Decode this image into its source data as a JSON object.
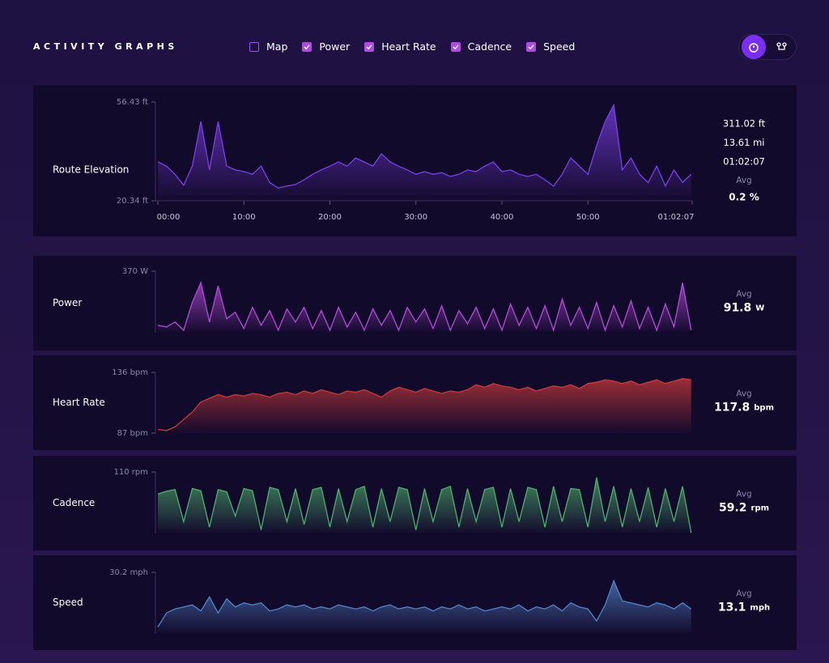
{
  "header": {
    "title": "ACTIVITY GRAPHS",
    "toggles": [
      {
        "label": "Map",
        "checked": false
      },
      {
        "label": "Power",
        "checked": true
      },
      {
        "label": "Heart Rate",
        "checked": true
      },
      {
        "label": "Cadence",
        "checked": true
      },
      {
        "label": "Speed",
        "checked": true
      }
    ]
  },
  "x": [
    0,
    1,
    2,
    3,
    4,
    5,
    6,
    7,
    8,
    9,
    10,
    11,
    12,
    13,
    14,
    15,
    16,
    17,
    18,
    19,
    20,
    21,
    22,
    23,
    24,
    25,
    26,
    27,
    28,
    29,
    30,
    31,
    32,
    33,
    34,
    35,
    36,
    37,
    38,
    39,
    40,
    41,
    42,
    43,
    44,
    45,
    46,
    47,
    48,
    49,
    50,
    51,
    52,
    53,
    54,
    55,
    56,
    57,
    58,
    59,
    60,
    61,
    62
  ],
  "xlim": [
    0,
    62.12
  ],
  "charts": [
    {
      "type": "area",
      "label": "Route Elevation",
      "color": "#7b3fe8",
      "ylim": [
        20.34,
        56.43
      ],
      "yticks": [
        {
          "value": 56.43,
          "label": "56.43 ft"
        },
        {
          "value": 20.34,
          "label": "20.34 ft"
        }
      ],
      "xticks": [
        {
          "value": 0,
          "label": "00:00"
        },
        {
          "value": 10,
          "label": "10:00"
        },
        {
          "value": 20,
          "label": "20:00"
        },
        {
          "value": 30,
          "label": "30:00"
        },
        {
          "value": 40,
          "label": "40:00"
        },
        {
          "value": 50,
          "label": "50:00"
        },
        {
          "value": 62.12,
          "label": "01:02:07"
        }
      ],
      "values": [
        34.5,
        33,
        30,
        26,
        33,
        49.3,
        31.6,
        49.3,
        33,
        31.6,
        31,
        30,
        33,
        27,
        25,
        25.7,
        26.3,
        28,
        30,
        31.6,
        33,
        34.5,
        33,
        36,
        34.5,
        33,
        37.5,
        34.5,
        33,
        31.6,
        30,
        31,
        30,
        30.6,
        29.2,
        30,
        31.6,
        31,
        33,
        34.5,
        31,
        31.6,
        30,
        29.2,
        30,
        28,
        25.7,
        30,
        36,
        33,
        30,
        40.5,
        49.3,
        55.3,
        31.6,
        36,
        30,
        27,
        33,
        25.7,
        31.6,
        27,
        30
      ],
      "stats": [
        "311.02 ft",
        "13.61 mi",
        "01:02:07"
      ],
      "avg_label": "Avg",
      "avg": "0.2 %"
    },
    {
      "type": "area",
      "label": "Power",
      "color": "#b24ad8",
      "ylim": [
        0,
        370
      ],
      "yticks": [
        {
          "value": 370,
          "label": "370 W"
        }
      ],
      "values": [
        40,
        30,
        60,
        10,
        180,
        300,
        60,
        280,
        80,
        120,
        20,
        150,
        40,
        130,
        10,
        140,
        60,
        150,
        20,
        130,
        10,
        150,
        30,
        120,
        10,
        140,
        40,
        130,
        10,
        150,
        60,
        140,
        20,
        160,
        10,
        130,
        50,
        150,
        20,
        140,
        10,
        170,
        40,
        150,
        20,
        160,
        10,
        200,
        40,
        150,
        20,
        180,
        10,
        160,
        30,
        190,
        20,
        150,
        10,
        170,
        30,
        300,
        10
      ],
      "avg_label": "Avg",
      "avg": "91.8",
      "unit": "W"
    },
    {
      "type": "area",
      "label": "Heart Rate",
      "color": "#c93a3a",
      "ylim": [
        87,
        136
      ],
      "yticks": [
        {
          "value": 136,
          "label": "136 bpm"
        },
        {
          "value": 87,
          "label": "87 bpm"
        }
      ],
      "values": [
        90,
        89,
        92,
        98,
        104,
        112,
        115,
        118,
        116,
        118,
        117,
        119,
        118,
        116,
        119,
        120,
        118,
        121,
        119,
        122,
        120,
        118,
        121,
        120,
        122,
        119,
        116,
        121,
        124,
        122,
        120,
        123,
        121,
        119,
        121,
        120,
        122,
        126,
        124,
        127,
        125,
        124,
        122,
        124,
        121,
        123,
        125,
        124,
        126,
        123,
        127,
        128,
        130,
        129,
        127,
        129,
        126,
        128,
        130,
        127,
        129,
        131,
        130
      ],
      "avg_label": "Avg",
      "avg": "117.8",
      "unit": "bpm"
    },
    {
      "type": "area",
      "label": "Cadence",
      "color": "#4fae6e",
      "ylim": [
        0,
        110
      ],
      "yticks": [
        {
          "value": 110,
          "label": "110 rpm"
        }
      ],
      "values": [
        70,
        75,
        78,
        20,
        80,
        76,
        10,
        78,
        74,
        30,
        80,
        76,
        5,
        82,
        78,
        20,
        80,
        15,
        78,
        82,
        10,
        80,
        20,
        78,
        84,
        10,
        80,
        20,
        82,
        78,
        5,
        80,
        20,
        78,
        84,
        10,
        80,
        20,
        78,
        82,
        10,
        80,
        20,
        82,
        78,
        10,
        84,
        20,
        80,
        78,
        10,
        100,
        20,
        84,
        10,
        80,
        20,
        82,
        10,
        80,
        20,
        84,
        0
      ],
      "avg_label": "Avg",
      "avg": "59.2",
      "unit": "rpm"
    },
    {
      "type": "area",
      "label": "Speed",
      "color": "#5283c8",
      "ylim": [
        0,
        30.2
      ],
      "yticks": [
        {
          "value": 30.2,
          "label": "30.2 mph"
        }
      ],
      "values": [
        3,
        10,
        12,
        13,
        14,
        11,
        18,
        10,
        17,
        13,
        15,
        14,
        15,
        11,
        12,
        14,
        13,
        14,
        12,
        13,
        12,
        14,
        13,
        12,
        13,
        11,
        13,
        14,
        12,
        13,
        12,
        13,
        11,
        13,
        12,
        14,
        12,
        13,
        11,
        12,
        13,
        12,
        14,
        11,
        13,
        12,
        14,
        11,
        15,
        13,
        12,
        6,
        14,
        26,
        16,
        15,
        14,
        13,
        15,
        14,
        12,
        15,
        12
      ],
      "avg_label": "Avg",
      "avg": "13.1",
      "unit": "mph"
    }
  ]
}
